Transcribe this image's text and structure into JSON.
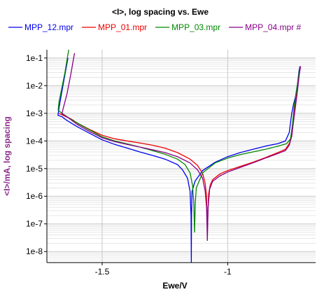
{
  "colors": {
    "background": "#ffffff",
    "grid_major": "#c8c8c8",
    "grid_minor": "#e6e6e6",
    "axis": "#000000",
    "ylabel": "#8b2a8b"
  },
  "chart_data": {
    "type": "line",
    "title": "<I>, log spacing vs. Ewe",
    "xlabel": "Ewe/V",
    "ylabel": "<I>/mA, log spacing",
    "xlim": [
      -1.72,
      -0.65
    ],
    "ylim_log10": [
      -8.4,
      -0.7
    ],
    "yscale": "log",
    "grid": true,
    "legend_position": "top",
    "x_ticks": [
      {
        "value": -1.5,
        "label": "-1.5"
      },
      {
        "value": -1.0,
        "label": "-1"
      }
    ],
    "y_ticks": [
      {
        "exp": -1,
        "label": "1e-1"
      },
      {
        "exp": -2,
        "label": "1e-2"
      },
      {
        "exp": -3,
        "label": "1e-3"
      },
      {
        "exp": -4,
        "label": "1e-4"
      },
      {
        "exp": -5,
        "label": "1e-5"
      },
      {
        "exp": -6,
        "label": "1e-6"
      },
      {
        "exp": -7,
        "label": "1e-7"
      },
      {
        "exp": -8,
        "label": "1e-8"
      }
    ],
    "series": [
      {
        "name": "MPP_12.mpr",
        "color": "#0000ee",
        "points": [
          [
            -1.636,
            0.1
          ],
          [
            -1.65,
            0.02
          ],
          [
            -1.662,
            0.005
          ],
          [
            -1.672,
            0.0015
          ],
          [
            -1.676,
            0.00085
          ],
          [
            -1.66,
            0.00075
          ],
          [
            -1.64,
            0.00055
          ],
          [
            -1.6,
            0.00033
          ],
          [
            -1.55,
            0.00019
          ],
          [
            -1.5,
            0.00011
          ],
          [
            -1.45,
            7.5e-05
          ],
          [
            -1.4,
            5.5e-05
          ],
          [
            -1.35,
            4e-05
          ],
          [
            -1.3,
            3e-05
          ],
          [
            -1.25,
            2.2e-05
          ],
          [
            -1.2,
            1.4e-05
          ],
          [
            -1.18,
            9e-06
          ],
          [
            -1.16,
            4.5e-06
          ],
          [
            -1.15,
            1.5e-06
          ],
          [
            -1.146,
            2e-07
          ],
          [
            -1.145,
            2e-09
          ],
          [
            -1.144,
            2e-07
          ],
          [
            -1.142,
            1.5e-06
          ],
          [
            -1.13,
            3.5e-06
          ],
          [
            -1.1,
            8.5e-06
          ],
          [
            -1.05,
            1.7e-05
          ],
          [
            -1.0,
            2.7e-05
          ],
          [
            -0.95,
            3.8e-05
          ],
          [
            -0.9,
            5e-05
          ],
          [
            -0.85,
            6.5e-05
          ],
          [
            -0.8,
            8e-05
          ],
          [
            -0.77,
            0.0001
          ],
          [
            -0.755,
            0.0002
          ],
          [
            -0.745,
            0.001
          ],
          [
            -0.738,
            0.0021
          ],
          [
            -0.73,
            0.004
          ],
          [
            -0.722,
            0.012
          ],
          [
            -0.716,
            0.035
          ],
          [
            -0.712,
            0.05
          ]
        ]
      },
      {
        "name": "MPP_01.mpr",
        "color": "#ee0000",
        "points": [
          [
            -1.672,
            0.001
          ],
          [
            -1.65,
            0.0008
          ],
          [
            -1.62,
            0.0006
          ],
          [
            -1.6,
            0.00045
          ],
          [
            -1.55,
            0.00026
          ],
          [
            -1.5,
            0.00016
          ],
          [
            -1.45,
            0.00012
          ],
          [
            -1.4,
            0.0001
          ],
          [
            -1.35,
            8.5e-05
          ],
          [
            -1.3,
            7e-05
          ],
          [
            -1.25,
            5.5e-05
          ],
          [
            -1.2,
            3.8e-05
          ],
          [
            -1.15,
            2.2e-05
          ],
          [
            -1.12,
            1.3e-05
          ],
          [
            -1.1,
            6.8e-06
          ],
          [
            -1.09,
            3e-06
          ],
          [
            -1.085,
            1.2e-06
          ],
          [
            -1.082,
            2e-07
          ],
          [
            -1.081,
            8e-08
          ],
          [
            -1.079,
            2e-07
          ],
          [
            -1.076,
            1.2e-06
          ],
          [
            -1.07,
            2.5e-06
          ],
          [
            -1.06,
            4e-06
          ],
          [
            -1.03,
            6.5e-06
          ],
          [
            -1.0,
            8.5e-06
          ],
          [
            -0.95,
            1.2e-05
          ],
          [
            -0.9,
            1.7e-05
          ],
          [
            -0.85,
            2.5e-05
          ],
          [
            -0.8,
            3.8e-05
          ],
          [
            -0.77,
            5e-05
          ],
          [
            -0.755,
            8e-05
          ],
          [
            -0.745,
            0.00015
          ],
          [
            -0.738,
            0.0006
          ],
          [
            -0.732,
            0.002
          ],
          [
            -0.725,
            0.006
          ],
          [
            -0.718,
            0.02
          ],
          [
            -0.712,
            0.045
          ]
        ]
      },
      {
        "name": "MPP_03.mpr",
        "color": "#008800",
        "points": [
          [
            -1.633,
            0.2
          ],
          [
            -1.648,
            0.03
          ],
          [
            -1.662,
            0.007
          ],
          [
            -1.672,
            0.0025
          ],
          [
            -1.675,
            0.0013
          ],
          [
            -1.66,
            0.001
          ],
          [
            -1.64,
            0.00075
          ],
          [
            -1.6,
            0.00045
          ],
          [
            -1.55,
            0.00025
          ],
          [
            -1.5,
            0.00014
          ],
          [
            -1.45,
            0.0001
          ],
          [
            -1.4,
            7.8e-05
          ],
          [
            -1.35,
            6e-05
          ],
          [
            -1.3,
            4.5e-05
          ],
          [
            -1.25,
            3.3e-05
          ],
          [
            -1.2,
            2.2e-05
          ],
          [
            -1.17,
            1.4e-05
          ],
          [
            -1.15,
            7e-06
          ],
          [
            -1.14,
            2.5e-06
          ],
          [
            -1.135,
            6e-07
          ],
          [
            -1.132,
            5e-08
          ],
          [
            -1.129,
            6e-07
          ],
          [
            -1.125,
            2e-06
          ],
          [
            -1.1,
            7e-06
          ],
          [
            -1.05,
            1.6e-05
          ],
          [
            -1.0,
            2.4e-05
          ],
          [
            -0.95,
            3.2e-05
          ],
          [
            -0.9,
            4e-05
          ],
          [
            -0.85,
            5e-05
          ],
          [
            -0.8,
            6.5e-05
          ],
          [
            -0.765,
            8e-05
          ],
          [
            -0.75,
            0.00012
          ],
          [
            -0.742,
            0.0004
          ],
          [
            -0.736,
            0.0015
          ],
          [
            -0.728,
            0.005
          ],
          [
            -0.72,
            0.015
          ],
          [
            -0.714,
            0.04
          ]
        ]
      },
      {
        "name": "MPP_04.mpr #",
        "color": "#880088",
        "points": [
          [
            -1.61,
            0.15
          ],
          [
            -1.625,
            0.025
          ],
          [
            -1.64,
            0.005
          ],
          [
            -1.655,
            0.0015
          ],
          [
            -1.66,
            0.00095
          ],
          [
            -1.64,
            0.00075
          ],
          [
            -1.6,
            0.0004
          ],
          [
            -1.55,
            0.00022
          ],
          [
            -1.5,
            0.00013
          ],
          [
            -1.45,
            9.5e-05
          ],
          [
            -1.4,
            7.5e-05
          ],
          [
            -1.35,
            6e-05
          ],
          [
            -1.3,
            4.8e-05
          ],
          [
            -1.25,
            3.8e-05
          ],
          [
            -1.2,
            2.7e-05
          ],
          [
            -1.15,
            1.6e-05
          ],
          [
            -1.12,
            9e-06
          ],
          [
            -1.1,
            4.5e-06
          ],
          [
            -1.09,
            1.6e-06
          ],
          [
            -1.084,
            4e-07
          ],
          [
            -1.081,
            2.5e-08
          ],
          [
            -1.078,
            4e-07
          ],
          [
            -1.072,
            1.8e-06
          ],
          [
            -1.06,
            3.5e-06
          ],
          [
            -1.03,
            5.5e-06
          ],
          [
            -1.0,
            7.5e-06
          ],
          [
            -0.95,
            1.1e-05
          ],
          [
            -0.9,
            1.6e-05
          ],
          [
            -0.85,
            2.4e-05
          ],
          [
            -0.8,
            3.5e-05
          ],
          [
            -0.77,
            4.5e-05
          ],
          [
            -0.755,
            7e-05
          ],
          [
            -0.745,
            0.00015
          ],
          [
            -0.738,
            0.0005
          ],
          [
            -0.73,
            0.0018
          ],
          [
            -0.722,
            0.007
          ],
          [
            -0.715,
            0.025
          ],
          [
            -0.71,
            0.05
          ]
        ]
      }
    ]
  }
}
